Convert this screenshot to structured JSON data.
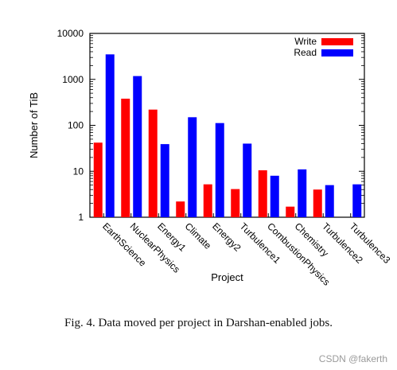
{
  "chart_data": {
    "type": "bar",
    "title": "",
    "xlabel": "Project",
    "ylabel": "Number of TiB",
    "yscale": "log",
    "ylim": [
      1,
      10000
    ],
    "yticks": [
      "1",
      "10",
      "100",
      "1000",
      "10000"
    ],
    "legend_position": "top-right",
    "categories": [
      "EarthScience",
      "NuclearPhysics",
      "Energy1",
      "Climate",
      "Energy2",
      "Turbulence1",
      "CombustionPhysics",
      "Chemistry",
      "Turbulence2",
      "Turbulence3"
    ],
    "series": [
      {
        "name": "Write",
        "color": "#ff0000",
        "values": [
          42,
          380,
          220,
          2.2,
          5.2,
          4.1,
          10.5,
          1.7,
          4.0,
          null
        ]
      },
      {
        "name": "Read",
        "color": "#0000ff",
        "values": [
          3500,
          1180,
          39,
          150,
          112,
          40,
          8.0,
          11,
          5.0,
          5.2
        ]
      }
    ]
  },
  "caption": "Fig. 4.   Data moved per project in Darshan-enabled jobs.",
  "watermark": "CSDN @fakerth"
}
